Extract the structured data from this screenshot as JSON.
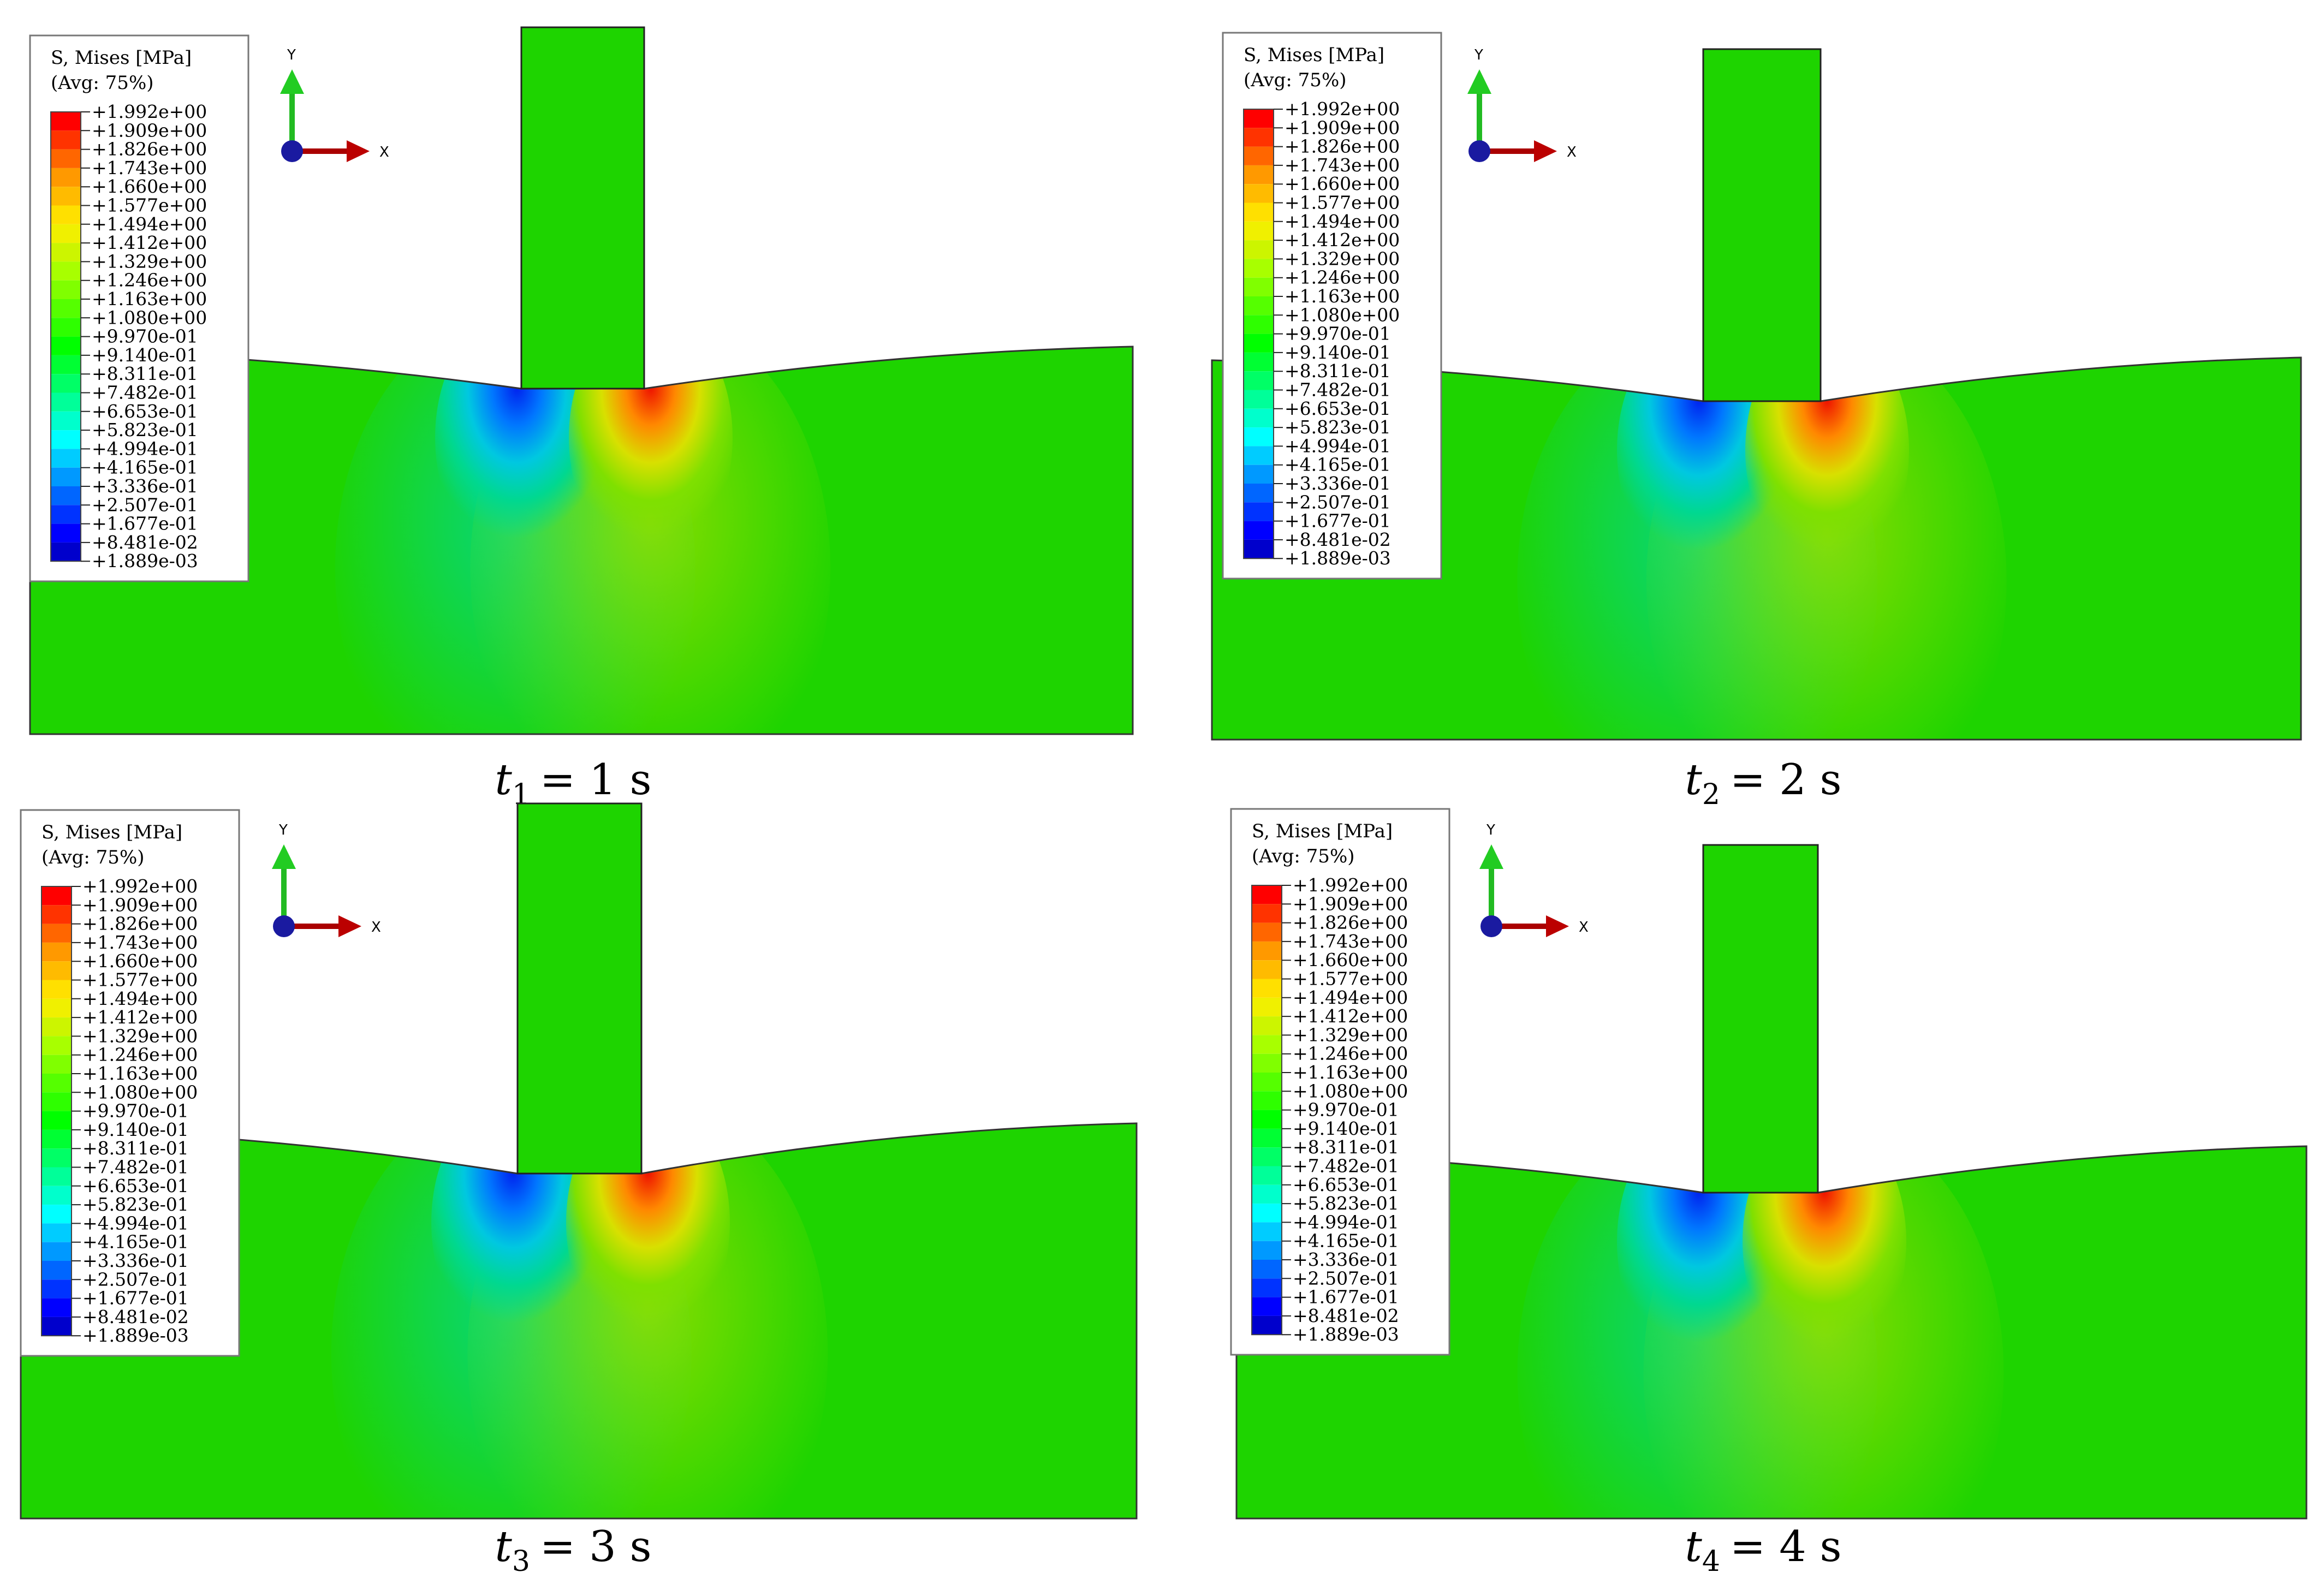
{
  "legend": {
    "title": "S, Mises [MPa]",
    "subtitle": "(Avg: 75%)",
    "values": [
      "+1.992e+00",
      "+1.909e+00",
      "+1.826e+00",
      "+1.743e+00",
      "+1.660e+00",
      "+1.577e+00",
      "+1.494e+00",
      "+1.412e+00",
      "+1.329e+00",
      "+1.246e+00",
      "+1.163e+00",
      "+1.080e+00",
      "+9.970e-01",
      "+9.140e-01",
      "+8.311e-01",
      "+7.482e-01",
      "+6.653e-01",
      "+5.823e-01",
      "+4.994e-01",
      "+4.165e-01",
      "+3.336e-01",
      "+2.507e-01",
      "+1.677e-01",
      "+8.481e-02",
      "+1.889e-03"
    ],
    "colors": [
      "#ff0000",
      "#ff3300",
      "#ff6600",
      "#ff9900",
      "#ffbb00",
      "#ffe000",
      "#f0f000",
      "#ccf500",
      "#a8ff00",
      "#80ff00",
      "#55ff00",
      "#2eff00",
      "#00ff00",
      "#00ff33",
      "#00ff66",
      "#00ff99",
      "#00ffcc",
      "#00ffff",
      "#00ccff",
      "#0099ff",
      "#0066ff",
      "#0033ff",
      "#0000ff",
      "#0000cc"
    ]
  },
  "axes": {
    "y": "Y",
    "x": "X"
  },
  "panels": [
    {
      "caption_var": "t",
      "caption_sub": "1",
      "caption_rest": "= 1 s"
    },
    {
      "caption_var": "t",
      "caption_sub": "2",
      "caption_rest": "= 2 s"
    },
    {
      "caption_var": "t",
      "caption_sub": "3",
      "caption_rest": "= 3 s"
    },
    {
      "caption_var": "t",
      "caption_sub": "4",
      "caption_rest": "= 4 s"
    }
  ]
}
